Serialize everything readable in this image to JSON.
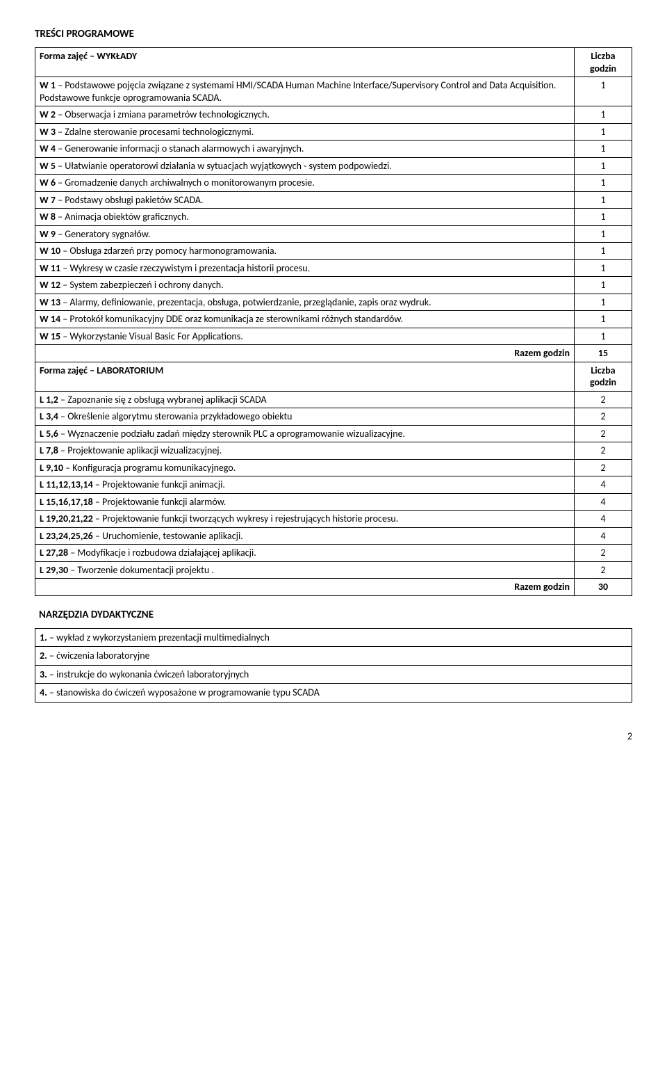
{
  "heading_tresci": "TREŚCI PROGRAMOWE",
  "lectures": {
    "header_label": "Forma zajęć – WYKŁADY",
    "hours_header_l1": "Liczba",
    "hours_header_l2": "godzin",
    "rows": [
      {
        "label_bold": "W 1",
        "label_rest": " – Podstawowe pojęcia związane z systemami HMI/SCADA Human Machine Interface/Supervisory Control and Data Acquisition. Podstawowe funkcje oprogramowania SCADA.",
        "hours": "1"
      },
      {
        "label_bold": "W 2",
        "label_rest": " – Obserwacja i zmiana parametrów technologicznych.",
        "hours": "1"
      },
      {
        "label_bold": "W 3",
        "label_rest": " – Zdalne sterowanie procesami technologicznymi.",
        "hours": "1"
      },
      {
        "label_bold": "W 4",
        "label_rest": " – Generowanie informacji o stanach alarmowych i awaryjnych.",
        "hours": "1"
      },
      {
        "label_bold": "W 5",
        "label_rest": " – Ułatwianie operatorowi działania w sytuacjach wyjątkowych - system podpowiedzi.",
        "hours": "1"
      },
      {
        "label_bold": "W 6",
        "label_rest": " – Gromadzenie danych archiwalnych o monitorowanym procesie.",
        "hours": "1"
      },
      {
        "label_bold": "W 7",
        "label_rest": " – Podstawy obsługi pakietów SCADA.",
        "hours": "1"
      },
      {
        "label_bold": "W 8",
        "label_rest": " – Animacja obiektów graficznych.",
        "hours": "1"
      },
      {
        "label_bold": "W 9",
        "label_rest": " – Generatory sygnałów.",
        "hours": "1"
      },
      {
        "label_bold": "W 10",
        "label_rest": " – Obsługa zdarzeń przy pomocy harmonogramowania.",
        "hours": "1"
      },
      {
        "label_bold": "W 11",
        "label_rest": " – Wykresy w czasie rzeczywistym i prezentacja historii procesu.",
        "hours": "1"
      },
      {
        "label_bold": "W 12",
        "label_rest": " – System zabezpieczeń i ochrony danych.",
        "hours": "1"
      },
      {
        "label_bold": "W 13",
        "label_rest": " – Alarmy, definiowanie, prezentacja, obsługa, potwierdzanie, przeglądanie, zapis oraz wydruk.",
        "hours": "1"
      },
      {
        "label_bold": "W 14",
        "label_rest": " – Protokół komunikacyjny DDE  oraz komunikacja ze sterownikami różnych standardów.",
        "hours": "1"
      },
      {
        "label_bold": "W 15",
        "label_rest": " – Wykorzystanie Visual Basic For Applications.",
        "hours": "1"
      }
    ],
    "total_label": "Razem godzin",
    "total_hours": "15"
  },
  "lab": {
    "header_label": "Forma zajęć – LABORATORIUM",
    "hours_header_l1": "Liczba",
    "hours_header_l2": "godzin",
    "rows": [
      {
        "label_bold": "L 1,2",
        "label_rest": " – Zapoznanie się z obsługą wybranej aplikacji SCADA",
        "hours": "2"
      },
      {
        "label_bold": "L 3,4",
        "label_rest": " – Określenie algorytmu sterowania przykładowego obiektu",
        "hours": "2"
      },
      {
        "label_bold": "L 5,6",
        "label_rest": " – Wyznaczenie podziału zadań między sterownik PLC a oprogramowanie wizualizacyjne.",
        "hours": "2"
      },
      {
        "label_bold": "L 7,8",
        "label_rest": " – Projektowanie aplikacji wizualizacyjnej.",
        "hours": "2"
      },
      {
        "label_bold": "L 9,10",
        "label_rest": " – Konfiguracja programu komunikacyjnego.",
        "hours": "2"
      },
      {
        "label_bold": "L 11,12,13,14",
        "label_rest": "      – Projektowanie funkcji animacji.",
        "hours": "4"
      },
      {
        "label_bold": "L 15,16,17,18",
        "label_rest": " – Projektowanie funkcji alarmów.",
        "hours": "4"
      },
      {
        "label_bold": "L 19,20,21,22",
        "label_rest": " – Projektowanie funkcji tworzących wykresy i rejestrujących historie procesu.",
        "hours": "4"
      },
      {
        "label_bold": "L 23,24,25,26",
        "label_rest": " – Uruchomienie, testowanie aplikacji.",
        "hours": "4"
      },
      {
        "label_bold": "L 27,28",
        "label_rest": " – Modyfikacje i rozbudowa działającej aplikacji.",
        "hours": "2"
      },
      {
        "label_bold": "L 29,30",
        "label_rest": " – Tworzenie dokumentacji projektu .",
        "hours": "2"
      }
    ],
    "total_label": "Razem godzin",
    "total_hours": "30"
  },
  "tools": {
    "heading": "NARZĘDZIA DYDAKTYCZNE",
    "rows": [
      {
        "num": "1.",
        "text": " – wykład z wykorzystaniem prezentacji multimedialnych"
      },
      {
        "num": "2.",
        "text": " – ćwiczenia laboratoryjne"
      },
      {
        "num": "3.",
        "text": " – instrukcje do wykonania ćwiczeń laboratoryjnych"
      },
      {
        "num": "4.",
        "text": " – stanowiska do ćwiczeń wyposażone w programowanie typu SCADA"
      }
    ]
  },
  "page_number": "2"
}
